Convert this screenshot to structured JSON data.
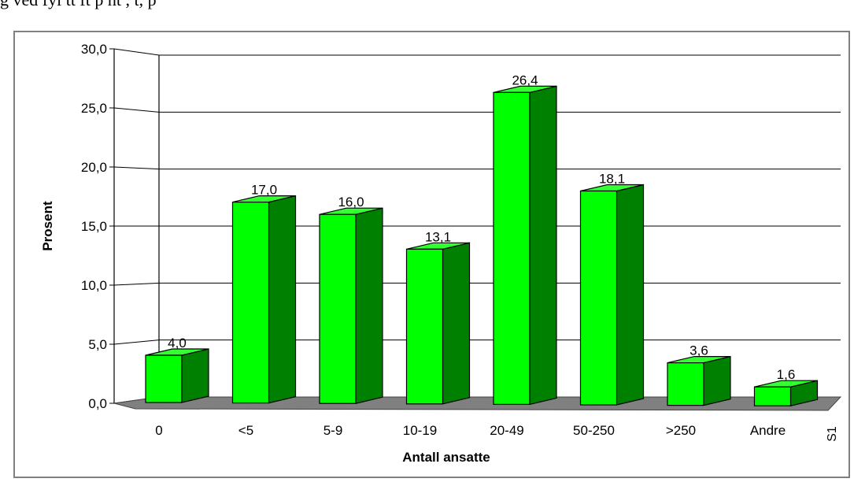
{
  "caption": "g  ved    fyl  tt       ft     p        ht    ,     t,   p",
  "chart_data": {
    "type": "bar",
    "title": "",
    "xlabel": "Antall ansatte",
    "ylabel": "Prosent",
    "ylim": [
      0,
      30
    ],
    "yticks": [
      "0,0",
      "5,0",
      "10,0",
      "15,0",
      "20,0",
      "25,0",
      "30,0"
    ],
    "categories": [
      "0",
      "<5",
      "5-9",
      "10-19",
      "20-49",
      "50-250",
      ">250",
      "Andre"
    ],
    "series": [
      {
        "name": "S1",
        "values": [
          4.0,
          17.0,
          16.0,
          13.1,
          26.4,
          18.1,
          3.6,
          1.6
        ],
        "labels": [
          "4,0",
          "17,0",
          "16,0",
          "13,1",
          "26,4",
          "18,1",
          "3,6",
          "1,6"
        ]
      }
    ],
    "grid": true,
    "legend": "none",
    "colors": {
      "bar_front": "#00ff00",
      "bar_side": "#008000",
      "bar_top": "#33ff33",
      "floor": "#808080"
    }
  }
}
